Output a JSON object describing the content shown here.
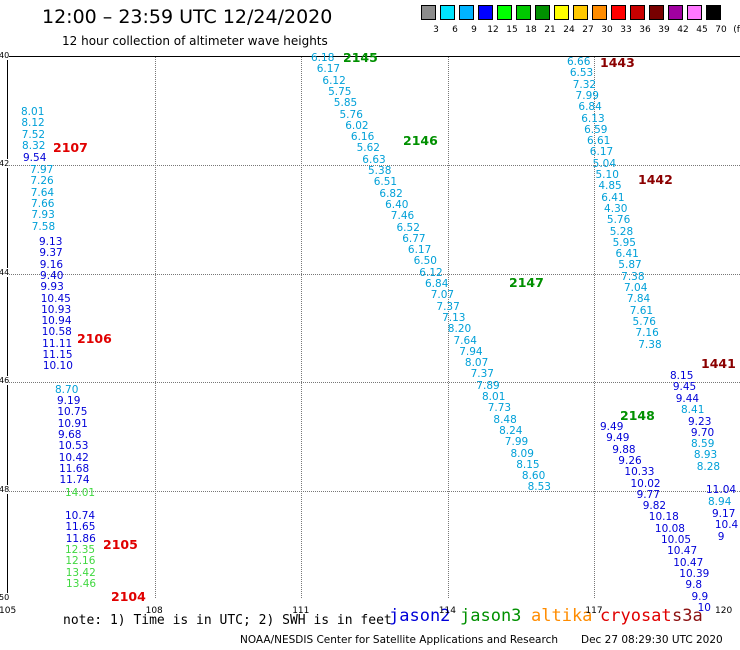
{
  "title": "12:00 – 23:59 UTC 12/24/2020",
  "subtitle": "12 hour collection of altimeter wave heights",
  "scale": {
    "labels": [
      "3",
      "6",
      "9",
      "12",
      "15",
      "18",
      "21",
      "24",
      "27",
      "30",
      "33",
      "36",
      "39",
      "42",
      "45",
      "70",
      "(ft)"
    ],
    "colors": [
      "#8c8c8c",
      "#00e4ff",
      "#00b4ff",
      "#0000ff",
      "#00ff00",
      "#00c800",
      "#009000",
      "#ffff00",
      "#ffc800",
      "#ff8c00",
      "#ff0000",
      "#c80000",
      "#780000",
      "#a000a0",
      "#ff78ff",
      "#000000"
    ]
  },
  "axes": {
    "y_labels": [
      "40",
      "42",
      "44",
      "46",
      "48",
      "50"
    ],
    "x_labels": [
      "105",
      "108",
      "111",
      "114",
      "117",
      "120"
    ]
  },
  "note": "note: 1) Time is in UTC; 2) SWH is in feet",
  "legend": [
    {
      "name": "jason2",
      "color": "#0000d8"
    },
    {
      "name": "jason3",
      "color": "#009000"
    },
    {
      "name": "altika",
      "color": "#ff8c00"
    },
    {
      "name": "cryosat",
      "color": "#e00000"
    },
    {
      "name": "s3a",
      "color": "#8b1010"
    }
  ],
  "footer": "NOAA/NESDIS Center for Satellite Applications and Research",
  "footer_time": "Dec 27 08:29:30 UTC 2020",
  "passes": [
    {
      "label": "2107",
      "color": "#e00000"
    },
    {
      "label": "2106",
      "color": "#e00000"
    },
    {
      "label": "2105",
      "color": "#e00000"
    },
    {
      "label": "2104",
      "color": "#e00000"
    },
    {
      "label": "2145",
      "color": "#009000"
    },
    {
      "label": "2146",
      "color": "#009000"
    },
    {
      "label": "2147",
      "color": "#009000"
    },
    {
      "label": "2148",
      "color": "#009000"
    },
    {
      "label": "1443",
      "color": "#8b0000"
    },
    {
      "label": "1442",
      "color": "#8b0000"
    },
    {
      "label": "1441",
      "color": "#8b0000"
    }
  ],
  "tracks": [
    {
      "color": "#00a0d8",
      "values": [
        "8.01",
        "8.12",
        "7.52",
        "8.32"
      ]
    },
    {
      "color": "#0000d8",
      "values": [
        "9.54"
      ]
    },
    {
      "color": "#00a0d8",
      "values": [
        "7.97",
        "7.26",
        "7.64",
        "7.66",
        "7.93",
        "7.58"
      ]
    },
    {
      "color": "#0000d8",
      "values": [
        "9.13",
        "9.37",
        "9.16",
        "9.40",
        "9.93",
        "10.45",
        "10.93",
        "10.94",
        "10.58",
        "11.11",
        "11.15",
        "10.10"
      ]
    },
    {
      "color": "#00a0d8",
      "values": [
        "8.70"
      ]
    },
    {
      "color": "#0000d8",
      "values": [
        "9.19",
        "10.75",
        "10.91",
        "9.68",
        "10.53",
        "10.42",
        "11.68",
        "11.74"
      ]
    },
    {
      "color": "#40d840",
      "values": [
        "14.01"
      ]
    },
    {
      "color": "#0000d8",
      "values": [
        "10.74",
        "11.65",
        "11.86"
      ]
    },
    {
      "color": "#40d840",
      "values": [
        "12.35",
        "12.16",
        "13.42",
        "13.46"
      ]
    },
    {
      "color": "#00a0d8",
      "values": [
        "6.18",
        "6.17",
        "6.12",
        "5.75",
        "5.85",
        "5.76",
        "6.02",
        "6.16",
        "5.62",
        "6.63",
        "5.38",
        "6.51",
        "6.82",
        "6.40",
        "7.46",
        "6.52",
        "6.77",
        "6.17",
        "6.50",
        "6.12",
        "6.84",
        "7.07",
        "7.37",
        "7.13",
        "8.20",
        "7.64",
        "7.94",
        "8.07",
        "7.37",
        "7.89",
        "8.01",
        "7.73",
        "8.48",
        "8.24",
        "7.99",
        "8.09",
        "8.15",
        "8.60",
        "8.53"
      ]
    },
    {
      "color": "#0000d8",
      "values": [
        "9.49",
        "9.49",
        "9.88",
        "9.26",
        "10.33",
        "10.02",
        "9.77",
        "9.82",
        "10.18",
        "10.08",
        "10.05",
        "10.47",
        "10.47",
        "10.39",
        "9.8",
        "9.9",
        "10"
      ]
    },
    {
      "color": "#00a0d8",
      "values": [
        "6.66",
        "6.53",
        "7.32",
        "7.99",
        "6.84",
        "6.13",
        "6.59",
        "6.61",
        "6.17",
        "5.04",
        "5.10",
        "4.85",
        "6.41",
        "4.30",
        "5.76",
        "5.28",
        "5.95",
        "6.41",
        "5.87",
        "7.38",
        "7.04",
        "7.84",
        "7.61",
        "5.76",
        "7.16",
        "7.38"
      ]
    },
    {
      "color": "#0000d8",
      "values": [
        "8.15",
        "9.45",
        "9.44"
      ]
    },
    {
      "color": "#00a0d8",
      "values": [
        "8.41"
      ]
    },
    {
      "color": "#0000d8",
      "values": [
        "9.23",
        "9.70"
      ]
    },
    {
      "color": "#00a0d8",
      "values": [
        "8.59",
        "8.93",
        "8.28"
      ]
    },
    {
      "color": "#0000d8",
      "values": [
        "11.04"
      ]
    },
    {
      "color": "#00a0d8",
      "values": [
        "8.94"
      ]
    },
    {
      "color": "#0000d8",
      "values": [
        "9.17",
        "10.4",
        "9"
      ]
    }
  ]
}
